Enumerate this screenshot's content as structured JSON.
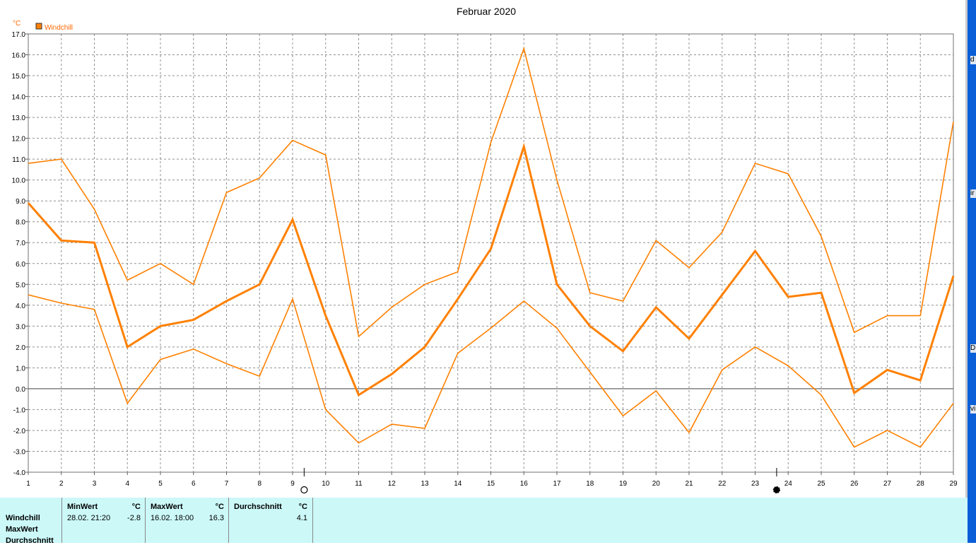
{
  "chart_data": {
    "type": "line",
    "title": "Februar 2020",
    "ylabel": "°C",
    "legend": [
      "Windchill"
    ],
    "legend_position": "top-left",
    "x": [
      1,
      2,
      3,
      4,
      5,
      6,
      7,
      8,
      9,
      10,
      11,
      12,
      13,
      14,
      15,
      16,
      17,
      18,
      19,
      20,
      21,
      22,
      23,
      24,
      25,
      26,
      27,
      28,
      29
    ],
    "ylim": [
      -4.0,
      17.0
    ],
    "y_ticks": [
      "17.0",
      "16.0",
      "15.0",
      "14.0",
      "13.0",
      "12.0",
      "11.0",
      "10.0",
      "9.0",
      "8.0",
      "7.0",
      "6.0",
      "5.0",
      "4.0",
      "3.0",
      "2.0",
      "1.0",
      "0.0",
      "-1.0",
      "-2.0",
      "-3.0",
      "-4.0"
    ],
    "grid": true,
    "series": [
      {
        "role": "max",
        "color": "#ff8000",
        "values": [
          10.8,
          11.0,
          8.6,
          5.2,
          6.0,
          5.0,
          9.4,
          10.1,
          11.9,
          11.2,
          2.5,
          3.9,
          5.0,
          5.6,
          11.8,
          16.3,
          10.0,
          4.6,
          4.2,
          7.1,
          5.8,
          7.5,
          10.8,
          10.3,
          7.3,
          2.7,
          3.5,
          3.5,
          12.8
        ]
      },
      {
        "role": "mean",
        "color": "#ff8000",
        "values": [
          8.9,
          7.1,
          7.0,
          2.0,
          3.0,
          3.3,
          4.2,
          5.0,
          8.1,
          3.5,
          -0.3,
          0.7,
          2.0,
          4.3,
          6.7,
          11.6,
          5.0,
          3.0,
          1.8,
          3.9,
          2.4,
          4.5,
          6.6,
          4.4,
          4.6,
          -0.2,
          0.9,
          0.4,
          5.4
        ]
      },
      {
        "role": "min",
        "color": "#ff8000",
        "values": [
          4.5,
          4.1,
          3.8,
          -0.7,
          1.4,
          1.9,
          1.2,
          0.6,
          4.3,
          -1.0,
          -2.6,
          -1.7,
          -1.9,
          1.7,
          2.9,
          4.2,
          2.9,
          0.8,
          -1.3,
          -0.1,
          -2.1,
          0.9,
          2.0,
          1.1,
          -0.3,
          -2.8,
          -2.0,
          -2.8,
          -0.7
        ]
      }
    ],
    "markers": [
      {
        "x": 9.35,
        "symbol": "full-moon-icon"
      },
      {
        "x": 23.65,
        "symbol": "new-moon-icon"
      }
    ]
  },
  "table": {
    "row_labels": [
      "Windchill",
      "MaxWert",
      "Durchschnitt"
    ],
    "columns": [
      {
        "header": "MinWert",
        "unit": "°C",
        "time": "28.02.  21:20",
        "value": "-2.8"
      },
      {
        "header": "MaxWert",
        "unit": "°C",
        "time": "16.02.  18:00",
        "value": "16.3"
      },
      {
        "header": "Durchschnitt",
        "unit": "°C",
        "time": "",
        "value": "4.1"
      }
    ]
  },
  "colors": {
    "line": "#ff8000",
    "grid": "#808080",
    "panel": "#ccf8f8",
    "sidebar": "#0a5fd8"
  },
  "side_letters": [
    "d",
    "ir",
    "D",
    "vi"
  ]
}
